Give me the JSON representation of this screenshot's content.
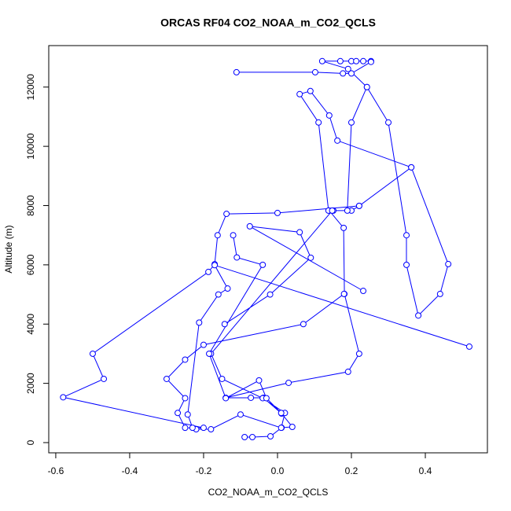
{
  "chart_data": {
    "type": "line",
    "title": "ORCAS RF04 CO2_NOAA_m_CO2_QCLS",
    "x_label": "CO2_NOAA_m_CO2_QCLS",
    "y_label": "Altitude (m)",
    "color": "#0000ff",
    "markers": true,
    "xlim": [
      -0.619,
      0.568
    ],
    "ylim": [
      -345,
      13400
    ],
    "xticks": [
      -0.6,
      -0.4,
      -0.2,
      {
        "value": 0,
        "label": "0.0"
      },
      0.2,
      0.4
    ],
    "yticks": [
      0,
      2000,
      4000,
      6000,
      8000,
      10000,
      12000
    ],
    "x": [
      -0.089,
      -0.068,
      -0.019,
      0.011,
      0.04,
      0.011,
      -0.038,
      -0.072,
      -0.14,
      0.03,
      0.191,
      0.221,
      0.181,
      0.179,
      0.14,
      0.2,
      0.221,
      0.362,
      0.162,
      0.14,
      0.089,
      0.06,
      0.111,
      0.138,
      0.151,
      0.189,
      0.2,
      0.242,
      0.191,
      0.121,
      0.17,
      0.2,
      0.213,
      0.232,
      0.253,
      0.253,
      0.2,
      0.177,
      0.102,
      -0.111,
      null,
      0.242,
      0.3,
      0.349,
      0.349,
      0.381,
      0.44,
      0.462,
      0.362,
      null,
      0.221,
      0.0,
      -0.138,
      -0.162,
      -0.17,
      -0.187,
      -0.5,
      -0.47,
      -0.58,
      -0.2,
      -0.25,
      -0.27,
      -0.25,
      -0.3,
      -0.25,
      -0.2,
      0.07,
      0.18,
      null,
      0.148,
      -0.18,
      -0.15,
      -0.04,
      0.02,
      0.01,
      -0.1,
      -0.18,
      -0.22,
      null,
      0.519,
      -0.17,
      -0.135,
      -0.16,
      -0.212,
      -0.243,
      -0.23,
      null,
      -0.143,
      -0.02,
      0.09,
      0.06,
      -0.075,
      0.232,
      null,
      -0.12,
      -0.11,
      -0.04,
      -0.185,
      -0.14,
      -0.05,
      -0.03,
      0.01
    ],
    "values": [
      186,
      186,
      212,
      504,
      531,
      982,
      1513,
      1513,
      1513,
      2018,
      2390,
      3000,
      5017,
      7247,
      7831,
      7831,
      7990,
      9291,
      10194,
      11043,
      11866,
      11760,
      10805,
      7831,
      7831,
      7831,
      10805,
      12000,
      12611,
      12875,
      12875,
      12875,
      12875,
      12875,
      12875,
      12850,
      12460,
      12460,
      12500,
      12500,
      null,
      12000,
      10805,
      7000,
      6000,
      4290,
      5017,
      6026,
      9291,
      null,
      7990,
      7750,
      7720,
      7000,
      6020,
      5760,
      3000,
      2150,
      1530,
      500,
      500,
      1000,
      1500,
      2150,
      2800,
      3300,
      4000,
      5017,
      null,
      7831,
      3000,
      2150,
      1500,
      1000,
      500,
      950,
      450,
      450,
      null,
      3240,
      5990,
      5200,
      5000,
      4050,
      950,
      500,
      null,
      4000,
      5000,
      6240,
      7100,
      7300,
      5120,
      null,
      7000,
      6250,
      6000,
      3000,
      1500,
      2100,
      1500,
      1000
    ]
  }
}
